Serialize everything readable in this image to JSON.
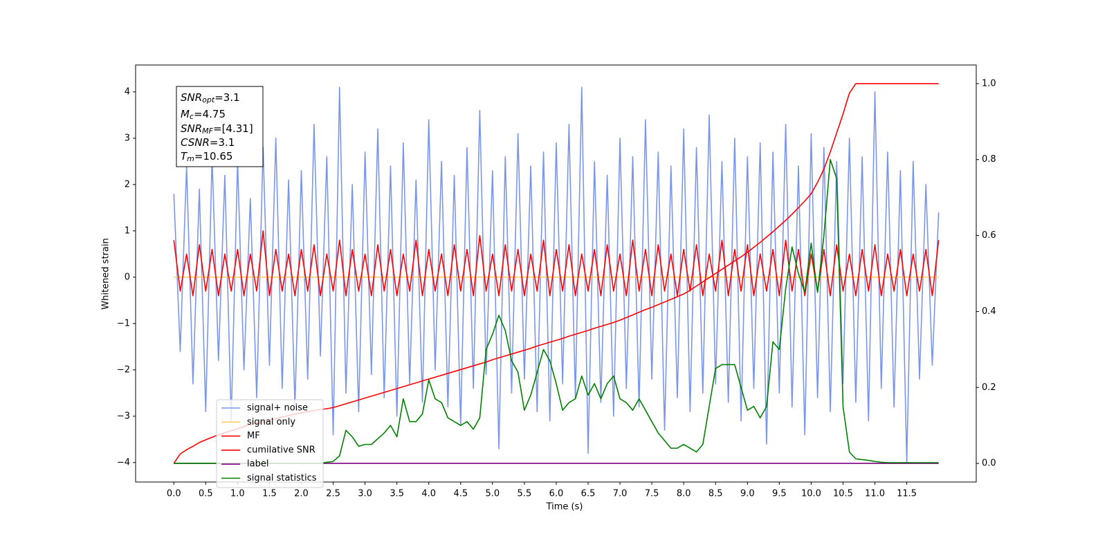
{
  "chart_data": {
    "type": "line",
    "xlabel": "Time (s)",
    "ylabel": "Whitened strain",
    "xlim": [
      -0.6,
      12.59
    ],
    "ylim": [
      -4.42,
      4.58
    ],
    "y2lim": [
      -0.049,
      1.049
    ],
    "xticks": [
      {
        "value": 0,
        "label": "0.0"
      },
      0.5,
      {
        "value": 1,
        "label": "1.0"
      },
      1.5,
      {
        "value": 2,
        "label": "2.0"
      },
      2.5,
      {
        "value": 3,
        "label": "3.0"
      },
      3.5,
      {
        "value": 4,
        "label": "4.0"
      },
      4.5,
      {
        "value": 5,
        "label": "5.0"
      },
      5.5,
      {
        "value": 6,
        "label": "6.0"
      },
      6.5,
      {
        "value": 7,
        "label": "7.0"
      },
      7.5,
      {
        "value": 8,
        "label": "8.0"
      },
      8.5,
      {
        "value": 9,
        "label": "9.0"
      },
      9.5,
      {
        "value": 10,
        "label": "10.0"
      },
      10.5,
      {
        "value": 11,
        "label": "11.0"
      },
      11.5
    ],
    "yticks": [
      {
        "value": -4,
        "label": "−4"
      },
      {
        "value": -3,
        "label": "−3"
      },
      {
        "value": -2,
        "label": "−2"
      },
      {
        "value": -1,
        "label": "−1"
      },
      0,
      1,
      2,
      3,
      4
    ],
    "y2ticks": [
      {
        "value": 0,
        "label": "0.0"
      },
      0.2,
      0.4,
      0.6,
      0.8,
      {
        "value": 1,
        "label": "1.0"
      }
    ],
    "annotation": [
      {
        "base": "SNR",
        "sub": "opt",
        "text": "=3.1"
      },
      {
        "base": "M",
        "sub": "c",
        "text": "=4.75"
      },
      {
        "base": "SNR",
        "sub": "MF",
        "text": "=[4.31]"
      },
      {
        "base": "CSNR",
        "text": "=3.1"
      },
      {
        "base": "T",
        "sub": "m",
        "text": "=10.65"
      }
    ],
    "x": [
      0,
      0.1,
      0.2,
      0.3,
      0.4,
      0.5,
      0.6,
      0.7,
      0.8,
      0.9,
      1,
      1.1,
      1.2,
      1.3,
      1.4,
      1.5,
      1.6,
      1.7,
      1.8,
      1.9,
      2,
      2.1,
      2.2,
      2.3,
      2.4,
      2.5,
      2.6,
      2.7,
      2.8,
      2.9,
      3,
      3.1,
      3.2,
      3.3,
      3.4,
      3.5,
      3.6,
      3.7,
      3.8,
      3.9,
      4,
      4.1,
      4.2,
      4.3,
      4.4,
      4.5,
      4.6,
      4.7,
      4.8,
      4.9,
      5,
      5.1,
      5.2,
      5.3,
      5.4,
      5.5,
      5.6,
      5.7,
      5.8,
      5.9,
      6,
      6.1,
      6.2,
      6.3,
      6.4,
      6.5,
      6.6,
      6.7,
      6.8,
      6.9,
      7,
      7.1,
      7.2,
      7.3,
      7.4,
      7.5,
      7.6,
      7.7,
      7.8,
      7.9,
      8,
      8.1,
      8.2,
      8.3,
      8.4,
      8.5,
      8.6,
      8.7,
      8.8,
      8.9,
      9,
      9.1,
      9.2,
      9.3,
      9.4,
      9.5,
      9.6,
      9.7,
      9.8,
      9.9,
      10,
      10.1,
      10.2,
      10.3,
      10.4,
      10.5,
      10.6,
      10.7,
      10.8,
      10.9,
      11,
      11.1,
      11.2,
      11.3,
      11.4,
      11.5,
      11.6,
      11.7,
      11.8,
      11.9,
      12
    ],
    "series": [
      {
        "name": "signal+ noise",
        "color": "#7b96e8",
        "axis": "y",
        "values": [
          1.8,
          -1.6,
          2.4,
          -2.3,
          1.9,
          -2.9,
          2.6,
          -1.8,
          2.2,
          -3.1,
          2.5,
          -2.0,
          1.7,
          -2.6,
          2.8,
          -1.9,
          3.0,
          -2.4,
          2.1,
          -2.8,
          2.3,
          -2.2,
          3.3,
          -1.7,
          2.6,
          -3.4,
          4.1,
          -2.5,
          2.0,
          -2.9,
          2.7,
          -2.1,
          3.2,
          -2.6,
          2.4,
          -3.0,
          2.9,
          -2.3,
          2.1,
          -2.7,
          3.4,
          -2.0,
          2.5,
          -2.8,
          2.2,
          -3.2,
          2.8,
          -2.4,
          3.6,
          -2.1,
          2.3,
          -3.7,
          2.6,
          -2.5,
          3.1,
          -2.2,
          2.4,
          -2.9,
          2.7,
          -3.1,
          2.9,
          -2.3,
          3.3,
          -2.6,
          4.1,
          -3.8,
          2.5,
          -2.7,
          2.2,
          -3.0,
          3.0,
          -2.4,
          2.6,
          -2.8,
          3.4,
          -2.2,
          2.7,
          -3.3,
          2.4,
          -2.6,
          3.2,
          -2.9,
          2.8,
          -2.5,
          3.5,
          -2.3,
          2.5,
          -2.7,
          3.0,
          -3.1,
          2.6,
          -2.4,
          2.9,
          -3.6,
          2.7,
          -2.5,
          3.3,
          -2.8,
          2.4,
          -3.4,
          3.1,
          -2.6,
          2.8,
          -2.9,
          2.5,
          -2.3,
          3.0,
          -2.7,
          2.6,
          -3.1,
          4.0,
          -2.4,
          2.7,
          -2.8,
          2.3,
          -4.0,
          2.5,
          -2.2,
          2.0,
          -1.9,
          1.4
        ]
      },
      {
        "name": "signal only",
        "color": "#ffc966",
        "axis": "y",
        "values": [
          0,
          0,
          0,
          0,
          0,
          0,
          0,
          0,
          0,
          0,
          0,
          0,
          0,
          0,
          0,
          0,
          0,
          0,
          0,
          0,
          0,
          0,
          0,
          0,
          0,
          0,
          0,
          0,
          0,
          0,
          0,
          0,
          0,
          0,
          0,
          0,
          0,
          0,
          0,
          0,
          0,
          0,
          0,
          0,
          0,
          0,
          0,
          0,
          0,
          0,
          0,
          0,
          0,
          0,
          0,
          0,
          0,
          0,
          0,
          0,
          0,
          0,
          0,
          0,
          0,
          0,
          0,
          0,
          0,
          0,
          0,
          0,
          0,
          0,
          0,
          0,
          0,
          0,
          0,
          0,
          0,
          0,
          0,
          0,
          0,
          0,
          0,
          0,
          0,
          0,
          0,
          0,
          0,
          0,
          0,
          0,
          0,
          0,
          0,
          0,
          0,
          0,
          0,
          0,
          0,
          0,
          0,
          0,
          0,
          0,
          0,
          0,
          0,
          0,
          0,
          0,
          0,
          0,
          0,
          0,
          0
        ]
      },
      {
        "name": "MF",
        "color": "#ff0000",
        "axis": "y",
        "values": [
          0.8,
          -0.3,
          0.5,
          -0.4,
          0.7,
          -0.3,
          0.6,
          -0.4,
          0.5,
          -0.3,
          0.6,
          -0.4,
          0.5,
          -0.3,
          1.0,
          -0.4,
          0.6,
          -0.3,
          0.5,
          -0.4,
          0.6,
          -0.3,
          0.7,
          -0.4,
          0.5,
          -0.3,
          0.8,
          -0.4,
          0.6,
          -0.3,
          0.5,
          -0.4,
          0.7,
          -0.3,
          0.6,
          -0.4,
          0.5,
          -0.3,
          0.8,
          -0.4,
          0.6,
          -0.3,
          0.5,
          -0.4,
          0.7,
          -0.3,
          0.6,
          -0.4,
          0.9,
          -0.3,
          0.5,
          -0.4,
          0.7,
          -0.3,
          0.6,
          -0.4,
          0.5,
          -0.3,
          0.8,
          -0.4,
          0.6,
          -0.3,
          0.7,
          -0.4,
          0.5,
          -0.3,
          0.6,
          -0.4,
          0.7,
          -0.3,
          0.5,
          -0.4,
          0.8,
          -0.3,
          0.6,
          -0.4,
          0.7,
          -0.3,
          0.5,
          -0.4,
          0.6,
          -0.3,
          0.7,
          -0.4,
          0.5,
          -0.3,
          0.8,
          -0.4,
          0.6,
          -0.3,
          0.7,
          -0.4,
          0.5,
          -0.3,
          0.6,
          -0.4,
          0.8,
          -0.3,
          0.6,
          -0.4,
          0.5,
          -0.3,
          0.6,
          -0.4,
          0.7,
          -0.3,
          0.5,
          -0.4,
          0.6,
          -0.3,
          0.7,
          -0.4,
          0.5,
          -0.3,
          0.6,
          -0.4,
          0.5,
          -0.3,
          0.6,
          -0.4,
          0.8
        ]
      },
      {
        "name": "cumilative SNR",
        "color": "#ff0000",
        "axis": "y2",
        "values": [
          0,
          0.025,
          0.036,
          0.045,
          0.055,
          0.062,
          0.069,
          0.075,
          0.081,
          0.086,
          0.091,
          0.097,
          0.102,
          0.106,
          0.11,
          0.114,
          0.118,
          0.122,
          0.126,
          0.13,
          0.133,
          0.136,
          0.139,
          0.142,
          0.144,
          0.147,
          0.152,
          0.157,
          0.162,
          0.167,
          0.172,
          0.177,
          0.182,
          0.187,
          0.192,
          0.197,
          0.202,
          0.207,
          0.212,
          0.217,
          0.222,
          0.227,
          0.232,
          0.237,
          0.242,
          0.247,
          0.252,
          0.257,
          0.262,
          0.267,
          0.273,
          0.278,
          0.283,
          0.288,
          0.293,
          0.298,
          0.303,
          0.309,
          0.314,
          0.319,
          0.324,
          0.329,
          0.335,
          0.34,
          0.345,
          0.35,
          0.356,
          0.361,
          0.366,
          0.371,
          0.377,
          0.384,
          0.391,
          0.398,
          0.405,
          0.411,
          0.418,
          0.425,
          0.432,
          0.439,
          0.446,
          0.456,
          0.467,
          0.478,
          0.489,
          0.5,
          0.511,
          0.522,
          0.533,
          0.544,
          0.556,
          0.569,
          0.582,
          0.596,
          0.61,
          0.625,
          0.64,
          0.656,
          0.673,
          0.691,
          0.71,
          0.74,
          0.775,
          0.82,
          0.87,
          0.92,
          0.975,
          1,
          1,
          1,
          1,
          1,
          1,
          1,
          1,
          1,
          1,
          1,
          1,
          1,
          1
        ]
      },
      {
        "name": "label",
        "color": "#800080",
        "axis": "y2",
        "values": [
          0,
          0,
          0,
          0,
          0,
          0,
          0,
          0,
          0,
          0,
          0,
          0,
          0,
          0,
          0,
          0,
          0,
          0,
          0,
          0,
          0,
          0,
          0,
          0,
          0,
          0,
          0,
          0,
          0,
          0,
          0,
          0,
          0,
          0,
          0,
          0,
          0,
          0,
          0,
          0,
          0,
          0,
          0,
          0,
          0,
          0,
          0,
          0,
          0,
          0,
          0,
          0,
          0,
          0,
          0,
          0,
          0,
          0,
          0,
          0,
          0,
          0,
          0,
          0,
          0,
          0,
          0,
          0,
          0,
          0,
          0,
          0,
          0,
          0,
          0,
          0,
          0,
          0,
          0,
          0,
          0,
          0,
          0,
          0,
          0,
          0,
          0,
          0,
          0,
          0,
          0,
          0,
          0,
          0,
          0,
          0,
          0,
          0,
          0,
          0,
          0,
          0,
          0,
          0,
          0,
          0,
          0,
          0,
          0,
          0,
          0,
          0,
          0,
          0,
          0,
          0,
          0,
          0,
          0,
          0,
          0
        ]
      },
      {
        "name": "signal statistics",
        "color": "#008000",
        "axis": "y2",
        "values": [
          0,
          0,
          0,
          0,
          0,
          0,
          0,
          0,
          0,
          0,
          0,
          0,
          0,
          0,
          0,
          0,
          0,
          0,
          0,
          0,
          0,
          0,
          0,
          0,
          0.003,
          0.005,
          0.02,
          0.087,
          0.07,
          0.045,
          0.05,
          0.05,
          0.065,
          0.08,
          0.1,
          0.07,
          0.17,
          0.11,
          0.11,
          0.13,
          0.22,
          0.17,
          0.16,
          0.12,
          0.11,
          0.1,
          0.11,
          0.09,
          0.12,
          0.3,
          0.34,
          0.39,
          0.35,
          0.27,
          0.24,
          0.14,
          0.18,
          0.24,
          0.3,
          0.27,
          0.21,
          0.14,
          0.16,
          0.17,
          0.23,
          0.18,
          0.21,
          0.17,
          0.21,
          0.23,
          0.17,
          0.16,
          0.14,
          0.17,
          0.14,
          0.11,
          0.08,
          0.06,
          0.04,
          0.04,
          0.05,
          0.04,
          0.03,
          0.05,
          0.15,
          0.25,
          0.26,
          0.26,
          0.26,
          0.2,
          0.14,
          0.15,
          0.12,
          0.15,
          0.32,
          0.3,
          0.46,
          0.57,
          0.5,
          0.45,
          0.58,
          0.45,
          0.6,
          0.8,
          0.75,
          0.15,
          0.03,
          0.012,
          0.01,
          0.008,
          0.005,
          0.003,
          0.002,
          0.002,
          0.002,
          0.002,
          0.002,
          0.002,
          0.002,
          0.002,
          0.002
        ]
      }
    ]
  }
}
